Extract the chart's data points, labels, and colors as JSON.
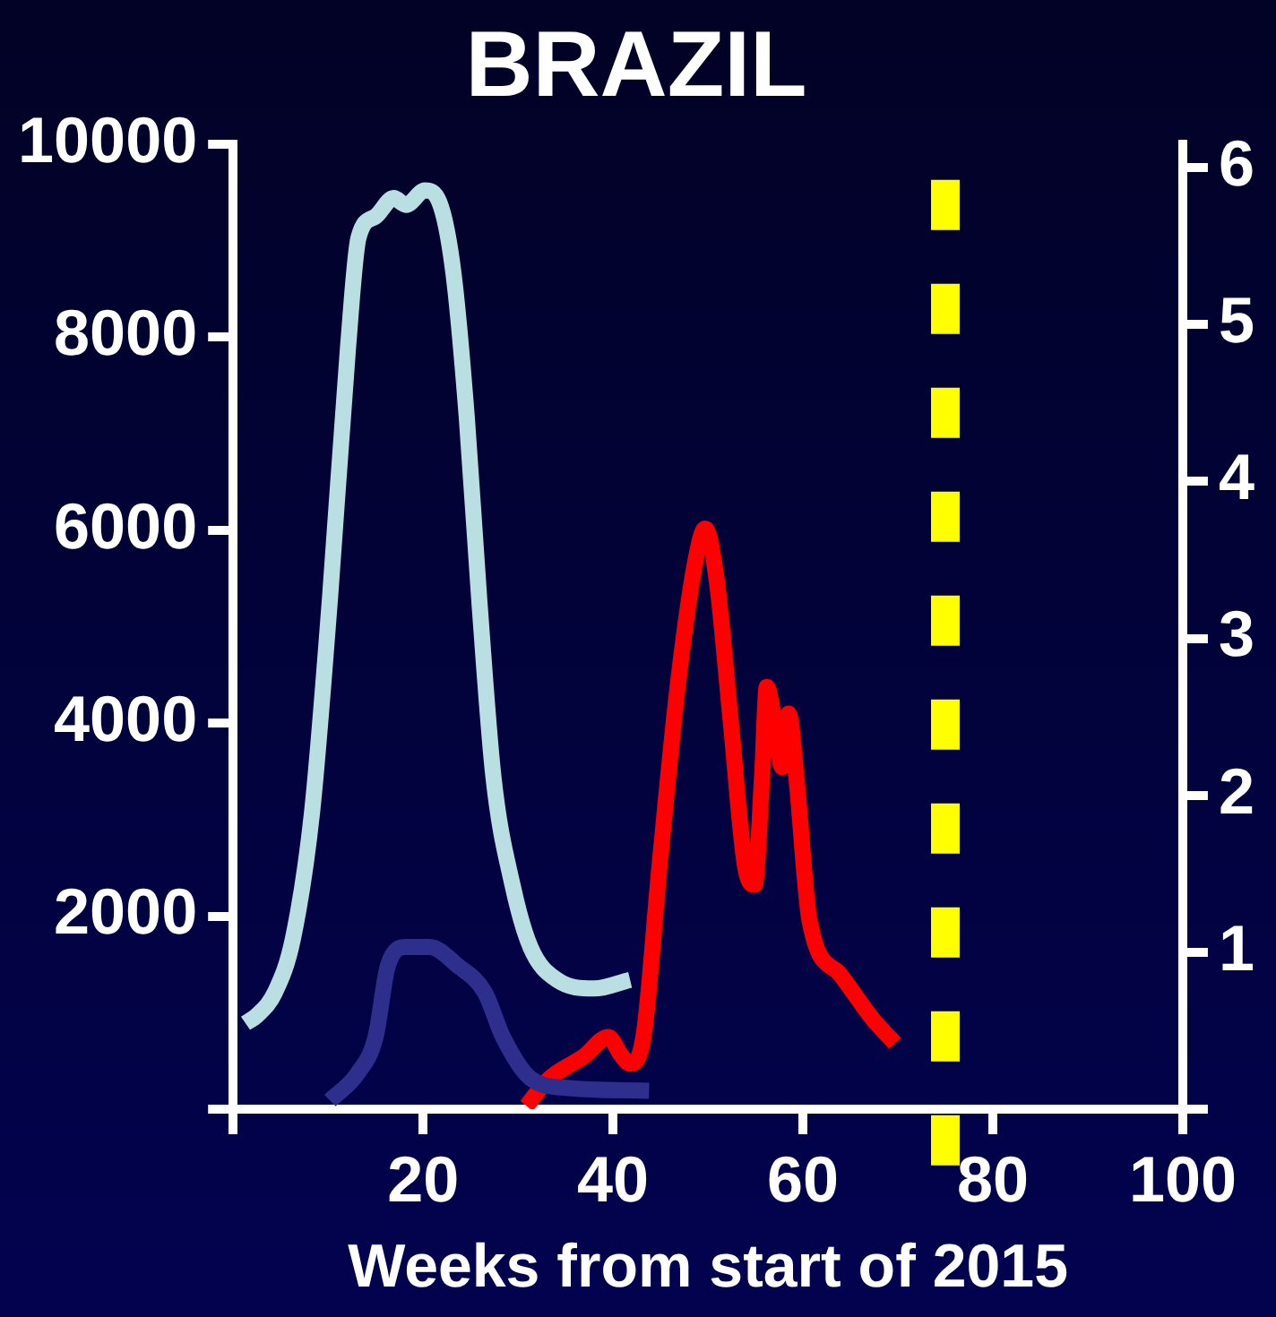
{
  "chart_data": {
    "type": "line",
    "title": "BRAZIL",
    "xlabel": "Weeks from start of 2015",
    "xlim": [
      0,
      100
    ],
    "xticks": [
      {
        "value": 0,
        "label": null
      },
      20,
      40,
      60,
      80,
      100
    ],
    "ylim": [
      0,
      10000
    ],
    "yticks": [
      {
        "value": 0,
        "label": null
      },
      2000,
      4000,
      6000,
      8000,
      10000
    ],
    "y2lim": [
      0,
      6.15
    ],
    "y2ticks": [
      {
        "value": 0,
        "label": null
      },
      1,
      2,
      3,
      4,
      5,
      6
    ],
    "grid": false,
    "legend": false,
    "marker": "none",
    "line_style": "solid",
    "series": [
      {
        "color": "#b9dfe2",
        "x": [
          1.3,
          2.5,
          4.4,
          6.3,
          8.3,
          10.2,
          12.1,
          13.2,
          15,
          16.9,
          18.2,
          20.2,
          21.7,
          23.2,
          24.6,
          25.9,
          27.4,
          29.4,
          31.3,
          34.1,
          38,
          41.8
        ],
        "values": [
          890,
          970,
          1210,
          1770,
          3070,
          5300,
          7900,
          9030,
          9250,
          9440,
          9370,
          9520,
          9400,
          8660,
          7170,
          5300,
          3450,
          2330,
          1680,
          1340,
          1250,
          1340
        ]
      },
      {
        "color": "#2e2e8c",
        "x": [
          10.2,
          13.1,
          15,
          16.3,
          18.2,
          20.7,
          23.6,
          26.5,
          28.4,
          31.3,
          35.1,
          43.8
        ],
        "values": [
          90,
          370,
          750,
          1490,
          1680,
          1680,
          1490,
          1210,
          750,
          320,
          220,
          190
        ]
      },
      {
        "color": "#ff0000",
        "axis": "y2",
        "x": [
          30.9,
          33.2,
          37,
          39.5,
          40.9,
          41.8,
          43.2,
          44.9,
          46.8,
          48.7,
          49.7,
          50.9,
          52.4,
          53.9,
          54.9,
          55.7,
          56.2,
          57,
          57.8,
          58.5,
          59.3,
          60.7,
          63.9,
          67.4,
          69.7
        ],
        "values": [
          0.02,
          0.19,
          0.34,
          0.46,
          0.34,
          0.29,
          0.46,
          1.55,
          2.69,
          3.5,
          3.7,
          3.38,
          2.47,
          1.55,
          1.43,
          2.12,
          2.69,
          2.47,
          2.18,
          2.52,
          2.12,
          1.2,
          0.86,
          0.57,
          0.42
        ]
      }
    ],
    "ref_lines": [
      {
        "axis": "x",
        "value": 75,
        "color": "#ffff00",
        "line_style": "dashed"
      }
    ]
  }
}
